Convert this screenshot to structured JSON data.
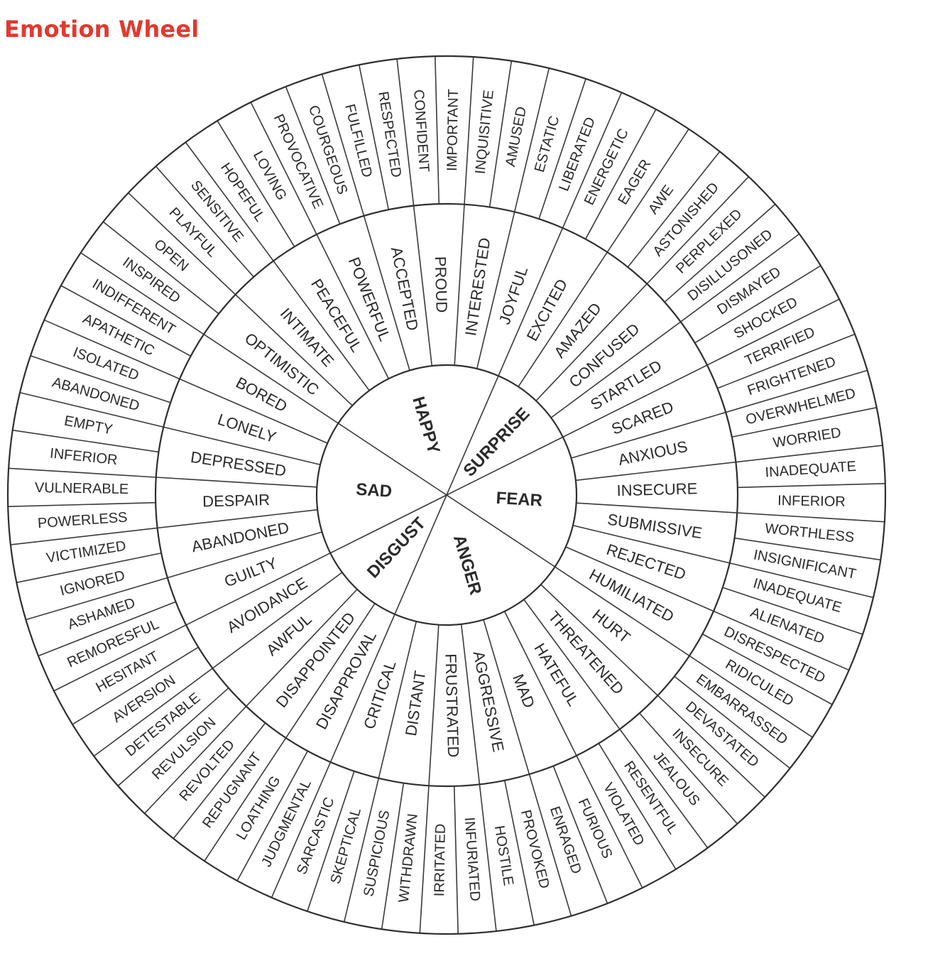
{
  "title": "Emotion Wheel",
  "colors": {
    "title": "#e03a2f",
    "line": "#2f2f2f",
    "text": "#2a2a2a"
  },
  "core": [
    {
      "label": "ANGER",
      "secondary": [
        {
          "label": "HURT",
          "tertiary": [
            "EMBARRASSED",
            "DEVASTATED"
          ]
        },
        {
          "label": "THREATENED",
          "tertiary": [
            "INSECURE",
            "JEALOUS"
          ]
        },
        {
          "label": "HATEFUL",
          "tertiary": [
            "RESENTFUL",
            "VIOLATED"
          ]
        },
        {
          "label": "MAD",
          "tertiary": [
            "FURIOUS",
            "ENRAGED"
          ]
        },
        {
          "label": "AGGRESSIVE",
          "tertiary": [
            "PROVOKED",
            "HOSTILE"
          ]
        },
        {
          "label": "FRUSTRATED",
          "tertiary": [
            "INFURIATED",
            "IRRITATED"
          ]
        },
        {
          "label": "DISTANT",
          "tertiary": [
            "WITHDRAWN",
            "SUSPICIOUS"
          ]
        },
        {
          "label": "CRITICAL",
          "tertiary": [
            "SKEPTICAL",
            "SARCASTIC"
          ]
        }
      ]
    },
    {
      "label": "DISGUST",
      "secondary": [
        {
          "label": "DISAPPROVAL",
          "tertiary": [
            "JUDGMENTAL",
            "LOATHING"
          ]
        },
        {
          "label": "DISAPPOINTED",
          "tertiary": [
            "REPUGNANT",
            "REVOLTED"
          ]
        },
        {
          "label": "AWFUL",
          "tertiary": [
            "REVULSION",
            "DETESTABLE"
          ]
        },
        {
          "label": "AVOIDANCE",
          "tertiary": [
            "AVERSION",
            "HESITANT"
          ]
        }
      ]
    },
    {
      "label": "SAD",
      "secondary": [
        {
          "label": "GUILTY",
          "tertiary": [
            "REMORESFUL",
            "ASHAMED"
          ]
        },
        {
          "label": "ABANDONED",
          "tertiary": [
            "IGNORED",
            "VICTIMIZED"
          ]
        },
        {
          "label": "DESPAIR",
          "tertiary": [
            "POWERLESS",
            "VULNERABLE"
          ]
        },
        {
          "label": "DEPRESSED",
          "tertiary": [
            "INFERIOR",
            "EMPTY"
          ]
        },
        {
          "label": "LONELY",
          "tertiary": [
            "ABANDONED",
            "ISOLATED"
          ]
        },
        {
          "label": "BORED",
          "tertiary": [
            "APATHETIC",
            "INDIFFERENT"
          ]
        }
      ]
    },
    {
      "label": "HAPPY",
      "secondary": [
        {
          "label": "OPTIMISTIC",
          "tertiary": [
            "INSPIRED",
            "OPEN"
          ]
        },
        {
          "label": "INTIMATE",
          "tertiary": [
            "PLAYFUL",
            "SENSITIVE"
          ]
        },
        {
          "label": "PEACEFUL",
          "tertiary": [
            "HOPEFUL",
            "LOVING"
          ]
        },
        {
          "label": "POWERFUL",
          "tertiary": [
            "PROVOCATIVE",
            "COURGEOUS"
          ]
        },
        {
          "label": "ACCEPTED",
          "tertiary": [
            "FULFILLED",
            "RESPECTED"
          ]
        },
        {
          "label": "PROUD",
          "tertiary": [
            "CONFIDENT",
            "IMPORTANT"
          ]
        },
        {
          "label": "INTERESTED",
          "tertiary": [
            "INQUISITIVE",
            "AMUSED"
          ]
        },
        {
          "label": "JOYFUL",
          "tertiary": [
            "ESTATIC",
            "LIBERATED"
          ]
        }
      ]
    },
    {
      "label": "SURPRISE",
      "secondary": [
        {
          "label": "EXCITED",
          "tertiary": [
            "ENERGETIC",
            "EAGER"
          ]
        },
        {
          "label": "AMAZED",
          "tertiary": [
            "AWE",
            "ASTONISHED"
          ]
        },
        {
          "label": "CONFUSED",
          "tertiary": [
            "PERPLEXED",
            "DISILLUSONED"
          ]
        },
        {
          "label": "STARTLED",
          "tertiary": [
            "DISMAYED",
            "SHOCKED"
          ]
        }
      ]
    },
    {
      "label": "FEAR",
      "secondary": [
        {
          "label": "SCARED",
          "tertiary": [
            "TERRIFIED",
            "FRIGHTENED"
          ]
        },
        {
          "label": "ANXIOUS",
          "tertiary": [
            "OVERWHELMED",
            "WORRIED"
          ]
        },
        {
          "label": "INSECURE",
          "tertiary": [
            "INADEQUATE",
            "INFERIOR"
          ]
        },
        {
          "label": "SUBMISSIVE",
          "tertiary": [
            "WORTHLESS",
            "INSIGNIFICANT"
          ]
        },
        {
          "label": "REJECTED",
          "tertiary": [
            "INADEQUATE",
            "ALIENATED"
          ]
        },
        {
          "label": "HUMILIATED",
          "tertiary": [
            "DISRESPECTED",
            "RIDICULED"
          ]
        }
      ]
    }
  ]
}
